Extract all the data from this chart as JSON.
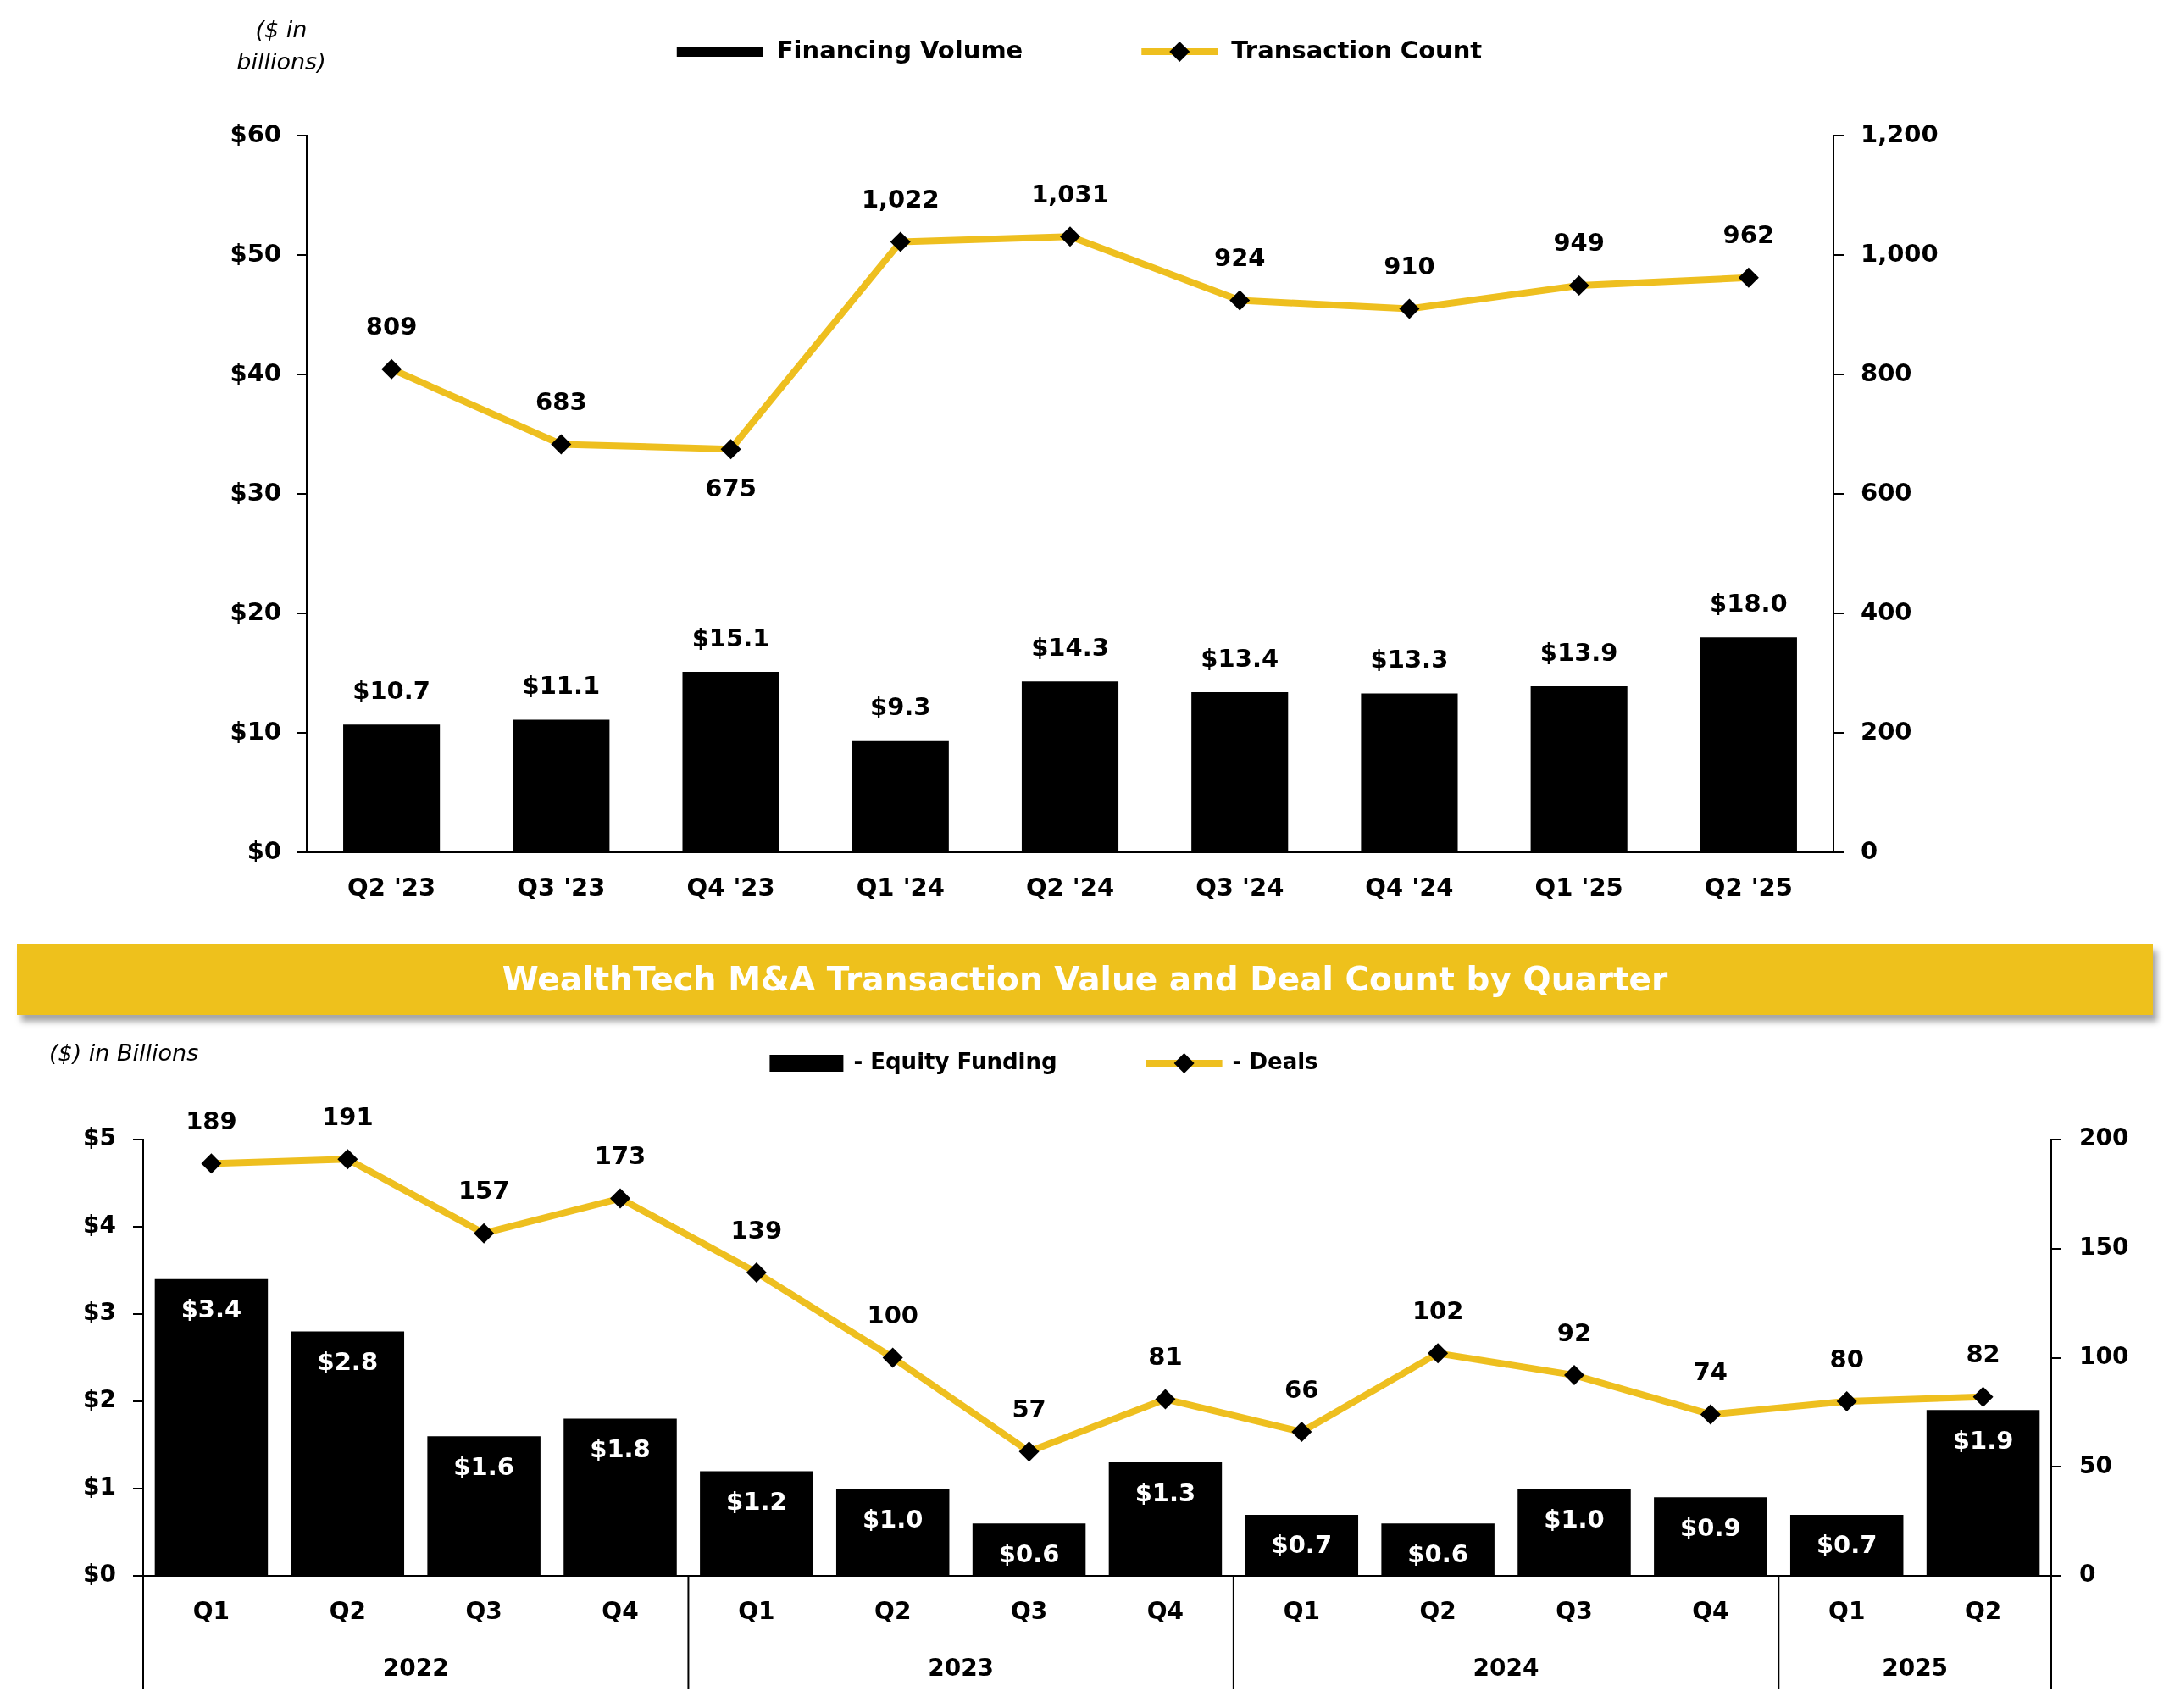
{
  "chart_data": [
    {
      "type": "bar",
      "ylabel": "($ in billions)",
      "categories": [
        "Q2 '23",
        "Q3 '23",
        "Q4 '23",
        "Q1 '24",
        "Q2 '24",
        "Q3 '24",
        "Q4 '24",
        "Q1 '25",
        "Q2 '25"
      ],
      "series": [
        {
          "name": "Financing Volume",
          "color": "#000000",
          "values": [
            10.7,
            11.1,
            15.1,
            9.3,
            14.3,
            13.4,
            13.3,
            13.9,
            18.0
          ],
          "value_labels": [
            "$10.7",
            "$11.1",
            "$15.1",
            "$9.3",
            "$14.3",
            "$13.4",
            "$13.3",
            "$13.9",
            "$18.0"
          ]
        },
        {
          "name": "Transaction Count",
          "type": "line",
          "axis": "y2",
          "color": "#eebf1f",
          "values": [
            809,
            683,
            675,
            1022,
            1031,
            924,
            910,
            949,
            962
          ],
          "value_labels": [
            "809",
            "683",
            "675",
            "1,022",
            "1,031",
            "924",
            "910",
            "949",
            "962"
          ]
        }
      ],
      "ylim": [
        0,
        60
      ],
      "yticks": [
        {
          "value": 0,
          "label": "$0"
        },
        {
          "value": 10,
          "label": "$10"
        },
        {
          "value": 20,
          "label": "$20"
        },
        {
          "value": 30,
          "label": "$30"
        },
        {
          "value": 40,
          "label": "$40"
        },
        {
          "value": 50,
          "label": "$50"
        },
        {
          "value": 60,
          "label": "$60"
        }
      ],
      "y2lim": [
        0,
        1200
      ],
      "y2ticks": [
        0,
        200,
        400,
        600,
        800,
        {
          "value": 1000,
          "label": "1,000"
        },
        {
          "value": 1200,
          "label": "1,200"
        }
      ],
      "legend": "top",
      "marker": "diamond"
    },
    {
      "type": "bar",
      "title": "WealthTech M&A Transaction Value and Deal Count by Quarter",
      "ylabel": "($) in Billions",
      "categories": [
        "Q1",
        "Q2",
        "Q3",
        "Q4",
        "Q1",
        "Q2",
        "Q3",
        "Q4",
        "Q1",
        "Q2",
        "Q3",
        "Q4",
        "Q1",
        "Q2"
      ],
      "series": [
        {
          "name": "- Equity Funding",
          "color": "#000000",
          "values": [
            3.4,
            2.8,
            1.6,
            1.8,
            1.2,
            1.0,
            0.6,
            1.3,
            0.7,
            0.6,
            1.0,
            0.9,
            0.7,
            1.9
          ],
          "value_labels": [
            "$3.4",
            "$2.8",
            "$1.6",
            "$1.8",
            "$1.2",
            "$1.0",
            "$0.6",
            "$1.3",
            "$0.7",
            "$0.6",
            "$1.0",
            "$0.9",
            "$0.7",
            "$1.9"
          ]
        },
        {
          "name": "- Deals",
          "type": "line",
          "axis": "y2",
          "color": "#eebf1f",
          "values": [
            189,
            191,
            157,
            173,
            139,
            100,
            57,
            81,
            66,
            102,
            92,
            74,
            80,
            82
          ],
          "value_labels": [
            "189",
            "191",
            "157",
            "173",
            "139",
            "100",
            "57",
            "81",
            "66",
            "102",
            "92",
            "74",
            "80",
            "82"
          ]
        }
      ],
      "ylim": [
        0,
        5
      ],
      "yticks": [
        {
          "value": 0,
          "label": "$0"
        },
        {
          "value": 1,
          "label": "$1"
        },
        {
          "value": 2,
          "label": "$2"
        },
        {
          "value": 3,
          "label": "$3"
        },
        {
          "value": 4,
          "label": "$4"
        },
        {
          "value": 5,
          "label": "$5"
        }
      ],
      "y2lim": [
        0,
        200
      ],
      "y2ticks": [
        0,
        50,
        100,
        150,
        200
      ],
      "annotations": [
        "2022",
        "2023",
        "2024",
        "2025"
      ],
      "legend": "top",
      "marker": "diamond"
    }
  ]
}
